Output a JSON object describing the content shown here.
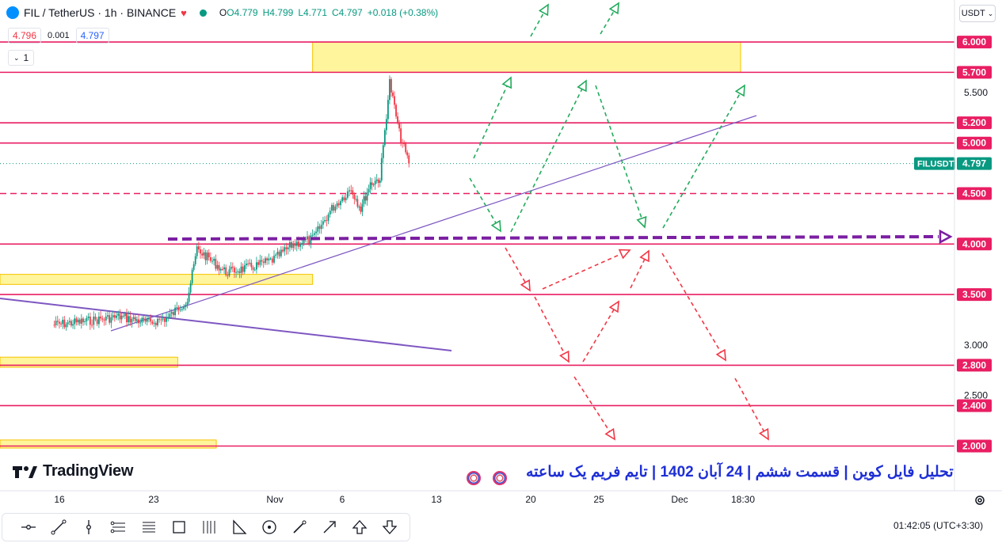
{
  "header": {
    "symbol": "FIL / TetherUS · 1h · BINANCE",
    "open": "O4.779",
    "high": "H4.799",
    "low": "L4.771",
    "close": "C4.797",
    "change": "+0.018 (+0.38%)",
    "bid": "4.796",
    "spread": "0.001",
    "ask": "4.797",
    "indicator_count": "1",
    "currency": "USDT"
  },
  "branding": {
    "logo": "TradingView"
  },
  "caption": "تحلیل فایل کوین | قسمت ششم | 24 آبان 1402 | تایم فریم یک ساعته",
  "footer": {
    "clock": "01:42:05",
    "timezone": "(UTC+3:30)"
  },
  "toolbar": {
    "tools": [
      "horizontal-line-icon",
      "trend-line-icon",
      "vertical-line-icon",
      "parallel-channel-icon",
      "fib-retracement-icon",
      "rectangle-icon",
      "gann-box-icon",
      "triangle-pattern-icon",
      "circle-icon",
      "brush-icon",
      "arrow-icon",
      "arrow-up-icon",
      "arrow-down-icon"
    ]
  },
  "colors": {
    "up": "#089981",
    "down": "#f23645",
    "level_line": "#e91e63",
    "zone_fill": "#fff59d",
    "trendline": "#7e57c2",
    "projection_green": "#22ab5c",
    "projection_red": "#f23645",
    "current_price_tag": "#089981",
    "caption_blue": "#1e2fd6"
  },
  "chart_data": {
    "type": "line",
    "symbol": "FILUSDT",
    "last_price": 4.797,
    "x_ticks": [
      "16",
      "23",
      "Nov",
      "6",
      "13",
      "20",
      "25",
      "Dec",
      "18:30"
    ],
    "y_ticks": [
      2.5,
      3.0,
      5.5
    ],
    "ylim": [
      1.8,
      6.3
    ],
    "horizontal_levels": [
      6.0,
      5.7,
      5.2,
      5.0,
      4.5,
      4.0,
      3.5,
      2.8,
      2.4,
      2.0
    ],
    "dashed_levels": [
      4.5
    ],
    "key_level_dashed_purple": 4.05,
    "zones": [
      {
        "from": 5.7,
        "to": 6.0,
        "x_from": "Nov 5",
        "x_to": "Dec 2"
      },
      {
        "from": 3.6,
        "to": 3.7,
        "x_from": "start",
        "x_to": "Nov 5"
      },
      {
        "from": 2.78,
        "to": 2.88,
        "x_from": "start",
        "x_to": "Oct 22"
      },
      {
        "from": 1.98,
        "to": 2.06,
        "x_from": "start",
        "x_to": "Oct 26"
      }
    ],
    "price_series": {
      "x": [
        "Oct 9",
        "Oct 12",
        "Oct 16",
        "Oct 19",
        "Oct 21",
        "Oct 23",
        "Oct 24",
        "Oct 27",
        "Oct 30",
        "Nov 1",
        "Nov 3",
        "Nov 5",
        "Nov 7",
        "Nov 9",
        "Nov 10",
        "Nov 11",
        "Nov 12",
        "Nov 13",
        "Nov 14",
        "Nov 15"
      ],
      "y": [
        3.2,
        3.23,
        3.28,
        3.22,
        3.27,
        3.45,
        3.95,
        3.72,
        3.78,
        3.85,
        4.0,
        4.05,
        4.35,
        4.55,
        4.35,
        4.6,
        4.65,
        5.6,
        5.1,
        4.797
      ]
    }
  }
}
